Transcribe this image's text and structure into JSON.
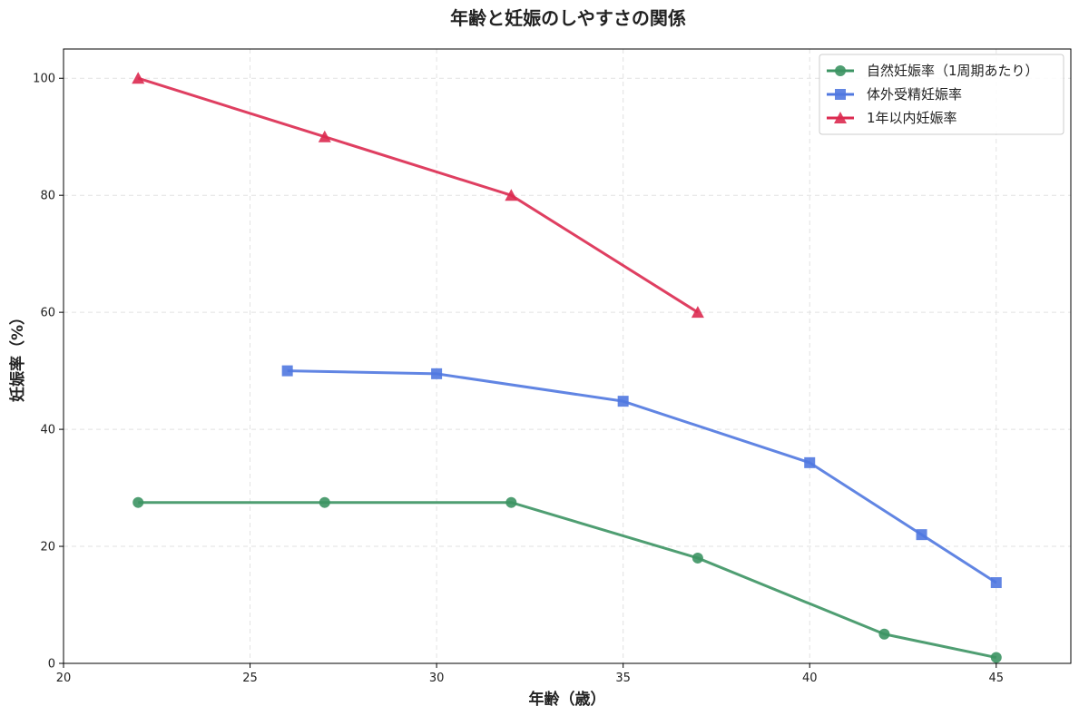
{
  "chart_data": {
    "type": "line",
    "title": "年齢と妊娠のしやすさの関係",
    "xlabel": "年齢（歳）",
    "ylabel": "妊娠率（%）",
    "xlim": [
      20,
      47
    ],
    "ylim": [
      0,
      105
    ],
    "x_ticks": [
      20,
      25,
      30,
      35,
      40,
      45
    ],
    "y_ticks": [
      0,
      20,
      40,
      60,
      80,
      100
    ],
    "grid": true,
    "legend_position": "top-right",
    "series": [
      {
        "name": "自然妊娠率（1周期あたり）",
        "color": "#3c9463",
        "marker": "circle",
        "x": [
          22,
          27,
          32,
          37,
          42,
          45
        ],
        "y": [
          27.5,
          27.5,
          27.5,
          18,
          5,
          1
        ]
      },
      {
        "name": "体外受精妊娠率",
        "color": "#5078e0",
        "marker": "square",
        "x": [
          26,
          30,
          35,
          40,
          43,
          45
        ],
        "y": [
          50,
          49.5,
          44.8,
          34.3,
          22,
          13.8
        ]
      },
      {
        "name": "1年以内妊娠率",
        "color": "#dc2a50",
        "marker": "triangle",
        "x": [
          22,
          27,
          32,
          37
        ],
        "y": [
          100,
          90,
          80,
          60
        ]
      }
    ]
  }
}
